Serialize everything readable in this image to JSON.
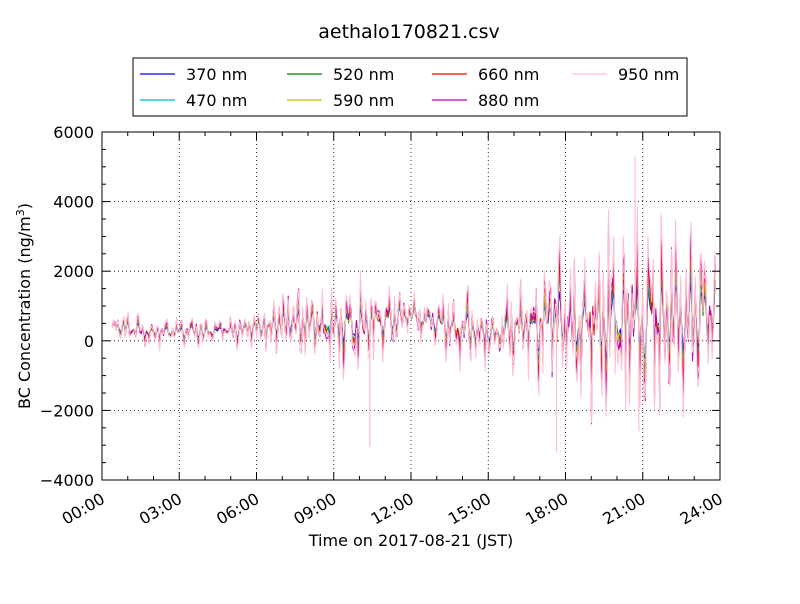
{
  "chart_data": {
    "type": "line",
    "title": "aethalo170821.csv",
    "xlabel": "Time on 2017-08-21 (JST)",
    "ylabel": "BC Concentration (ng/m³)",
    "ylabel_parts": {
      "base": "BC Concentration (ng/m",
      "sup": "3",
      "close": ")"
    },
    "x_range": [
      "00:00",
      "24:00"
    ],
    "x_range_hours": [
      0,
      24
    ],
    "ylim": [
      -4000,
      6000
    ],
    "grid": true,
    "legend_position": "top-center",
    "x_ticks": [
      {
        "hour": 0,
        "label": "00:00"
      },
      {
        "hour": 3,
        "label": "03:00"
      },
      {
        "hour": 6,
        "label": "06:00"
      },
      {
        "hour": 9,
        "label": "09:00"
      },
      {
        "hour": 12,
        "label": "12:00"
      },
      {
        "hour": 15,
        "label": "15:00"
      },
      {
        "hour": 18,
        "label": "18:00"
      },
      {
        "hour": 21,
        "label": "21:00"
      },
      {
        "hour": 24,
        "label": "24:00"
      }
    ],
    "y_ticks": [
      {
        "value": -4000,
        "label": "−4000"
      },
      {
        "value": -2000,
        "label": "−2000"
      },
      {
        "value": 0,
        "label": "0"
      },
      {
        "value": 2000,
        "label": "2000"
      },
      {
        "value": 4000,
        "label": "4000"
      },
      {
        "value": 6000,
        "label": "6000"
      }
    ],
    "series": [
      {
        "name": "370 nm",
        "color": "#0000ff",
        "amplitude_factor": 0.45
      },
      {
        "name": "470 nm",
        "color": "#00bfbf",
        "amplitude_factor": 0.55
      },
      {
        "name": "520 nm",
        "color": "#008000",
        "amplitude_factor": 0.65
      },
      {
        "name": "590 nm",
        "color": "#bfbf00",
        "amplitude_factor": 0.72
      },
      {
        "name": "660 nm",
        "color": "#ff0000",
        "amplitude_factor": 0.8
      },
      {
        "name": "880 nm",
        "color": "#bf00bf",
        "amplitude_factor": 1.0
      },
      {
        "name": "950 nm",
        "color": "#ffc0cb",
        "amplitude_factor": 1.15
      }
    ],
    "envelope": {
      "hours": [
        0.4,
        1.5,
        3.0,
        4.5,
        6.0,
        7.5,
        9.0,
        10.5,
        12.0,
        13.5,
        15.0,
        16.5,
        18.0,
        19.5,
        21.0,
        22.5,
        23.8
      ],
      "baseline": [
        450,
        250,
        250,
        250,
        350,
        500,
        550,
        500,
        700,
        450,
        200,
        400,
        500,
        550,
        600,
        650,
        700
      ],
      "half_range": [
        350,
        400,
        400,
        400,
        450,
        1000,
        1200,
        1300,
        500,
        900,
        1000,
        1300,
        2300,
        2300,
        2700,
        2200,
        1800
      ]
    },
    "annotations": [
      {
        "hour": 10.4,
        "value": -3050
      },
      {
        "hour": 17.65,
        "value": -3200
      },
      {
        "hour": 20.7,
        "value": 5300
      },
      {
        "hour": 20.85,
        "value": -2600
      }
    ]
  }
}
